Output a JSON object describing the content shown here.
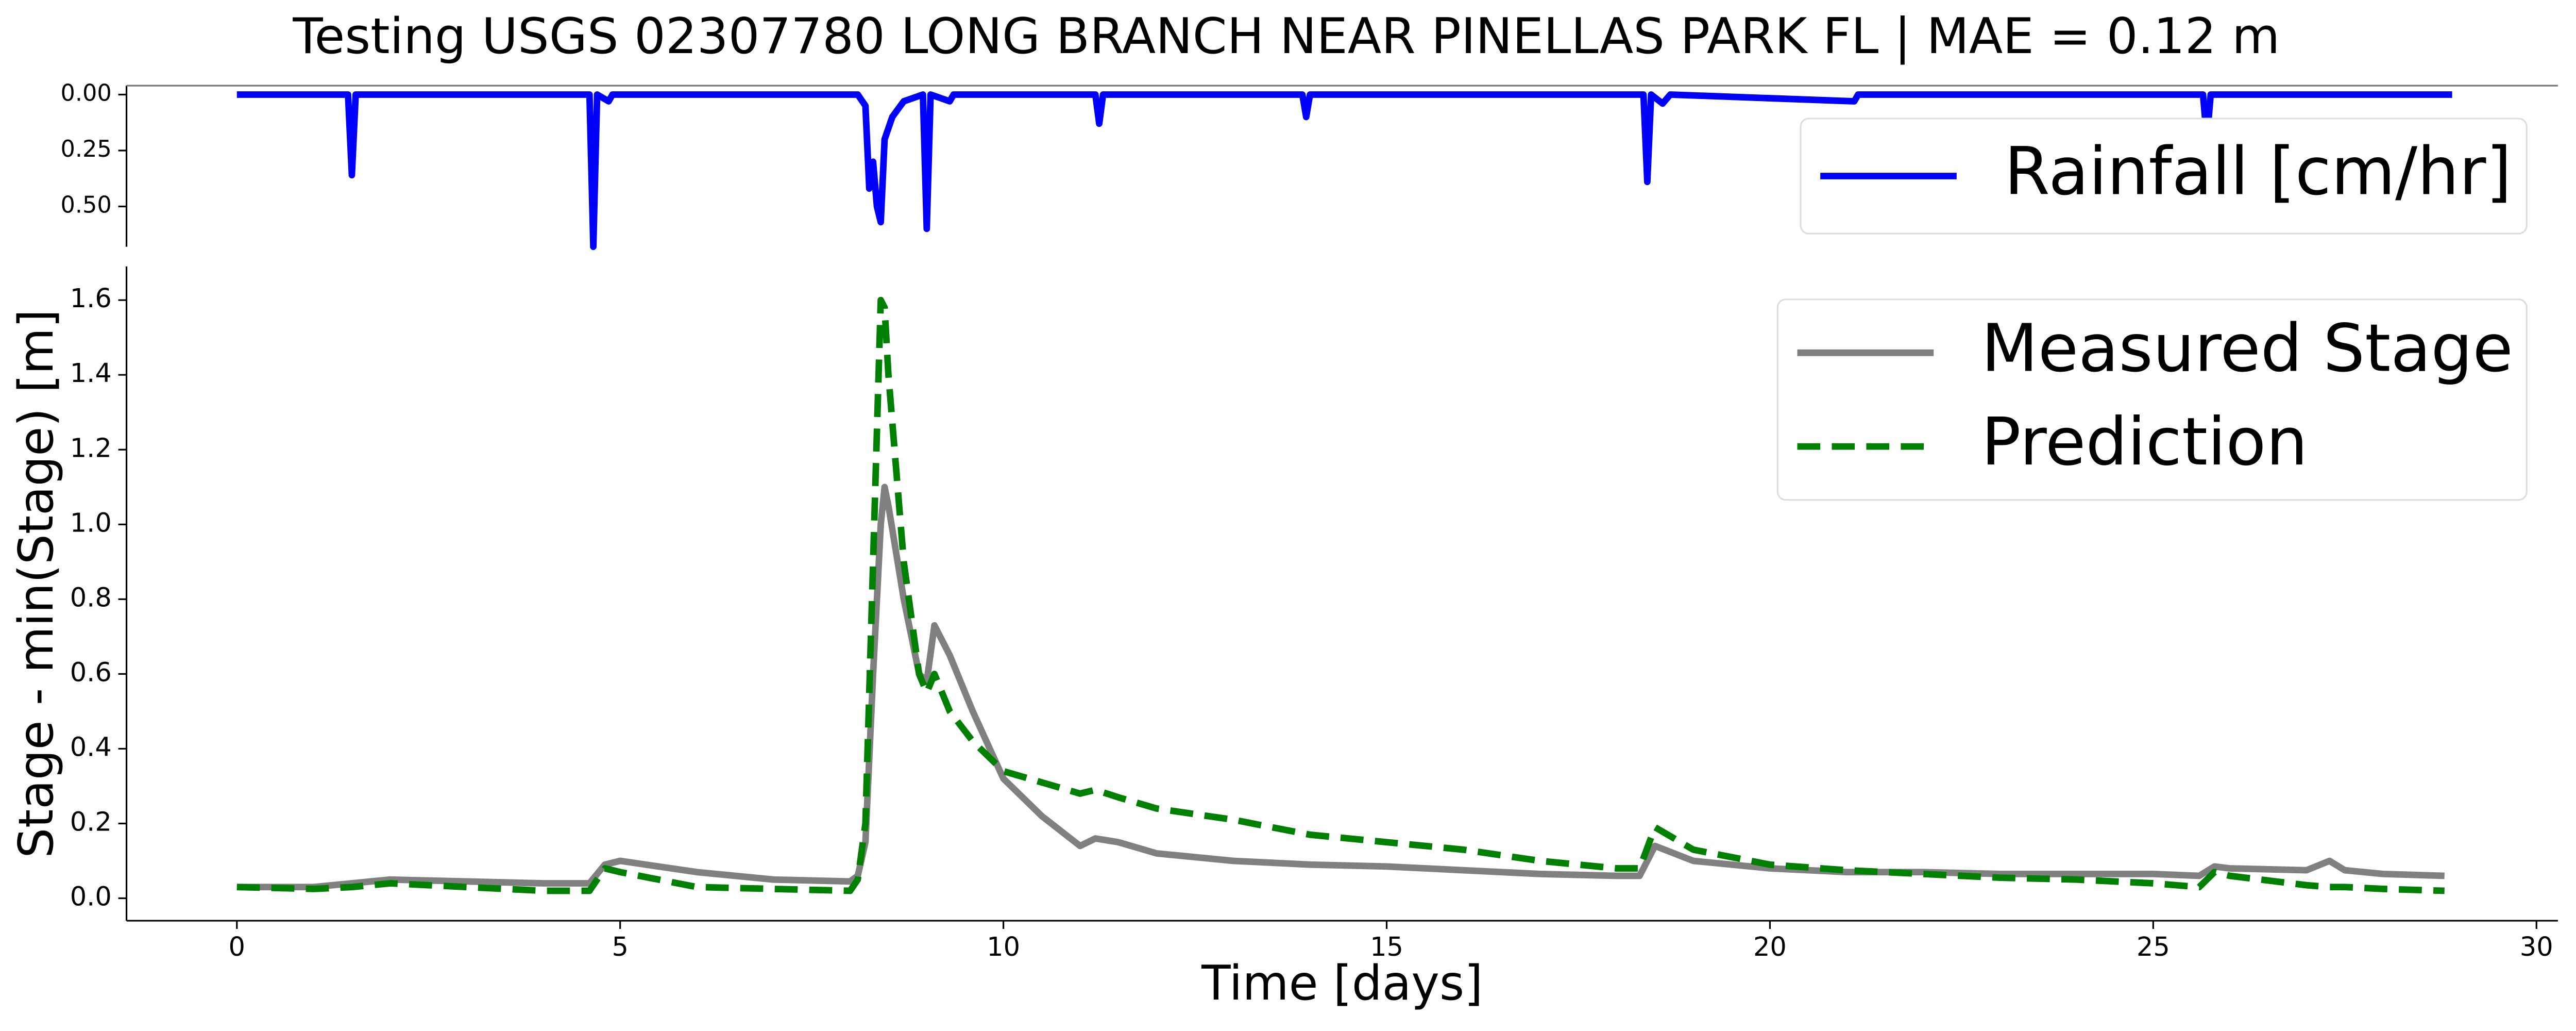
{
  "chart_data": [
    {
      "type": "line",
      "title": "Testing USGS 02307780 LONG BRANCH NEAR PINELLAS PARK FL | MAE = 0.12 m",
      "invert_y": true,
      "legend": "upper right",
      "x": [
        0,
        1.45,
        1.5,
        1.55,
        4.6,
        4.65,
        4.7,
        4.85,
        4.9,
        8.1,
        8.2,
        8.25,
        8.3,
        8.35,
        8.4,
        8.45,
        8.55,
        8.7,
        8.95,
        9.0,
        9.05,
        9.3,
        9.35,
        11.2,
        11.25,
        11.3,
        13.9,
        13.95,
        14,
        18.35,
        18.4,
        18.45,
        18.6,
        18.7,
        21.1,
        21.15,
        25.65,
        25.7,
        25.75,
        28.9
      ],
      "series": [
        {
          "name": "Rainfall [cm/hr]",
          "color": "#0000ff",
          "values": [
            0,
            0,
            0.36,
            0,
            0,
            0.68,
            0,
            0.03,
            0,
            0,
            0.05,
            0.42,
            0.3,
            0.5,
            0.57,
            0.2,
            0.1,
            0.03,
            0,
            0.6,
            0,
            0.03,
            0,
            0,
            0.13,
            0,
            0,
            0.1,
            0,
            0,
            0.39,
            0,
            0.04,
            0,
            0.03,
            0,
            0,
            0.2,
            0,
            0
          ]
        }
      ],
      "xlim": [
        -1.44,
        30.28
      ],
      "ylim": [
        -0.04,
        0.68
      ],
      "yticks": [
        {
          "value": 0,
          "label": "0.00"
        },
        {
          "value": 0.25,
          "label": "0.25"
        },
        {
          "value": 0.5,
          "label": "0.50"
        }
      ]
    },
    {
      "type": "line",
      "xlabel": "Time [days]",
      "ylabel": "Stage - min(Stage) [m]",
      "legend": "upper right",
      "x": [
        0,
        1,
        1.5,
        2,
        3,
        4,
        4.6,
        4.8,
        5,
        6,
        7,
        8,
        8.1,
        8.2,
        8.3,
        8.4,
        8.45,
        8.5,
        8.7,
        8.9,
        9.0,
        9.1,
        9.3,
        9.6,
        10,
        10.5,
        11,
        11.2,
        11.5,
        12,
        13,
        14,
        15,
        16,
        17,
        18,
        18.3,
        18.5,
        19,
        20,
        21,
        22,
        23,
        24,
        25,
        25.6,
        25.8,
        26,
        27,
        27.3,
        27.5,
        28,
        28.8
      ],
      "series": [
        {
          "name": "Measured Stage",
          "color": "#808080",
          "dash": false,
          "values": [
            0.03,
            0.03,
            0.04,
            0.05,
            0.045,
            0.04,
            0.04,
            0.09,
            0.1,
            0.07,
            0.05,
            0.045,
            0.06,
            0.15,
            0.6,
            1.0,
            1.1,
            1.05,
            0.8,
            0.6,
            0.58,
            0.73,
            0.65,
            0.5,
            0.32,
            0.22,
            0.14,
            0.16,
            0.15,
            0.12,
            0.1,
            0.09,
            0.085,
            0.075,
            0.065,
            0.06,
            0.06,
            0.14,
            0.1,
            0.08,
            0.07,
            0.07,
            0.065,
            0.065,
            0.065,
            0.06,
            0.085,
            0.08,
            0.075,
            0.1,
            0.075,
            0.065,
            0.06
          ]
        },
        {
          "name": "Prediction",
          "color": "#008000",
          "dash": true,
          "values": [
            0.03,
            0.025,
            0.03,
            0.04,
            0.03,
            0.02,
            0.02,
            0.08,
            0.07,
            0.03,
            0.025,
            0.02,
            0.05,
            0.2,
            0.9,
            1.6,
            1.58,
            1.4,
            0.9,
            0.6,
            0.55,
            0.6,
            0.5,
            0.42,
            0.34,
            0.31,
            0.28,
            0.29,
            0.27,
            0.24,
            0.21,
            0.17,
            0.15,
            0.13,
            0.1,
            0.08,
            0.08,
            0.19,
            0.13,
            0.09,
            0.075,
            0.065,
            0.055,
            0.05,
            0.04,
            0.03,
            0.07,
            0.06,
            0.035,
            0.03,
            0.03,
            0.025,
            0.02
          ]
        }
      ],
      "xlim": [
        -1.44,
        30.28
      ],
      "ylim": [
        -0.06,
        1.69
      ],
      "xticks": [
        0,
        5,
        10,
        15,
        20,
        25,
        30
      ],
      "yticks": [
        {
          "value": 0,
          "label": "0.0"
        },
        {
          "value": 0.2,
          "label": "0.2"
        },
        {
          "value": 0.4,
          "label": "0.4"
        },
        {
          "value": 0.6,
          "label": "0.6"
        },
        {
          "value": 0.8,
          "label": "0.8"
        },
        {
          "value": 1.0,
          "label": "1.0"
        },
        {
          "value": 1.2,
          "label": "1.2"
        },
        {
          "value": 1.4,
          "label": "1.4"
        },
        {
          "value": 1.6,
          "label": "1.6"
        }
      ]
    }
  ]
}
